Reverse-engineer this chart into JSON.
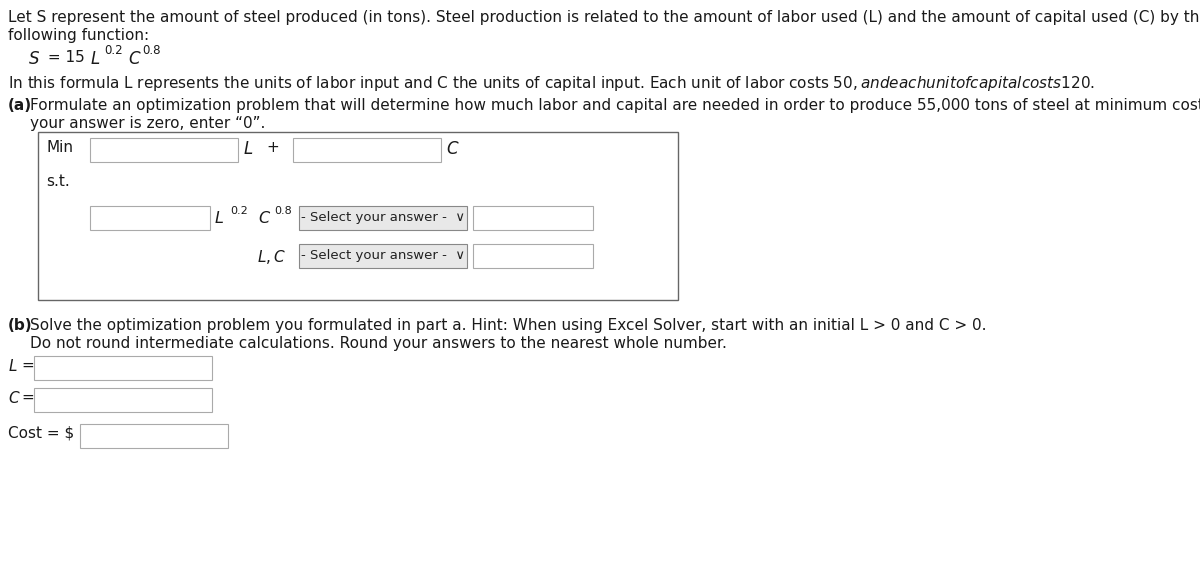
{
  "bg_color": "#ffffff",
  "text_color": "#1a1a1a",
  "line1": "Let S represent the amount of steel produced (in tons). Steel production is related to the amount of labor used (L) and the amount of capital used (C) by the",
  "line2": "following function:",
  "line3": "In this formula L represents the units of labor input and C the units of capital input. Each unit of labor costs $50, and each unit of capital costs $120.",
  "part_a_bold": "(a)",
  "part_a_rest": " Formulate an optimization problem that will determine how much labor and capital are needed in order to produce 55,000 tons of steel at minimum cost. If",
  "part_a_line2": "your answer is zero, enter “0”.",
  "part_b_bold": "(b)",
  "part_b_rest": " Solve the optimization problem you formulated in part a. Hint: When using Excel Solver, start with an initial L > 0 and C > 0.",
  "part_b_line2": "Do not round intermediate calculations. Round your answers to the nearest whole number.",
  "font_size": 11.0,
  "box_border": "#666666",
  "input_border": "#aaaaaa",
  "dropdown_bg": "#e8e8e8",
  "dropdown_border": "#888888"
}
